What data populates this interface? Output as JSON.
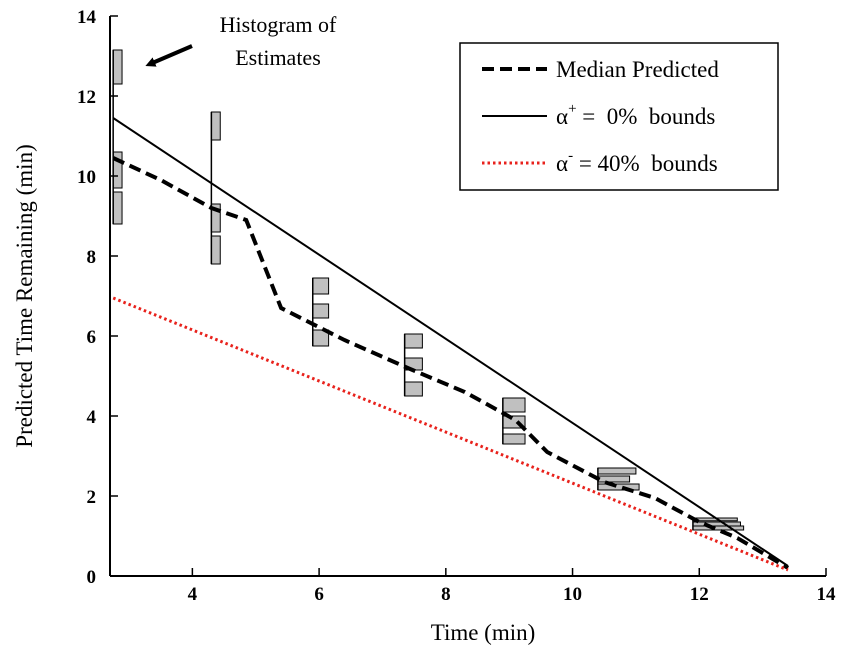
{
  "chart_data": {
    "type": "line",
    "title": "",
    "xlabel": "Time (min)",
    "ylabel": "Predicted Time Remaining (min)",
    "xlim": [
      2.7,
      14
    ],
    "ylim": [
      0,
      14
    ],
    "xticks": [
      4,
      6,
      8,
      10,
      12,
      14
    ],
    "yticks": [
      0,
      2,
      4,
      6,
      8,
      10,
      12,
      14
    ],
    "xtick_labels": [
      "4",
      "6",
      "8",
      "10",
      "12",
      "14"
    ],
    "ytick_labels": [
      "0",
      "2",
      "4",
      "6",
      "8",
      "10",
      "12",
      "14"
    ],
    "grid": false,
    "legend_position": "top-right",
    "annotation": {
      "lines": [
        "Histogram of",
        "Estimates"
      ],
      "arrow": true
    },
    "series": [
      {
        "name": "Median Predicted",
        "style": "dashed",
        "color": "#000000",
        "x": [
          2.75,
          3.5,
          4.3,
          4.85,
          5.4,
          6.4,
          7.4,
          8.3,
          9.1,
          9.6,
          10.5,
          11.3,
          12.0,
          12.6,
          13.4
        ],
        "y": [
          10.45,
          9.9,
          9.2,
          8.9,
          6.7,
          5.9,
          5.2,
          4.6,
          3.9,
          3.1,
          2.35,
          1.95,
          1.35,
          0.95,
          0.2
        ]
      },
      {
        "name_parts": {
          "symbol": "α",
          "sup": "+",
          "rest": " =  0%  bounds"
        },
        "style": "solid",
        "color": "#000000",
        "x": [
          2.75,
          13.4
        ],
        "y": [
          11.45,
          0.25
        ]
      },
      {
        "name_parts": {
          "symbol": "α",
          "sup": "-",
          "rest": " = 40%  bounds"
        },
        "style": "dotted",
        "color": "#e8221c",
        "x": [
          2.75,
          13.4
        ],
        "y": [
          6.95,
          0.15
        ]
      }
    ],
    "histograms": [
      {
        "x": 2.75,
        "bins": [
          [
            8.8,
            9.6,
            0.14
          ],
          [
            9.7,
            10.6,
            0.14
          ],
          [
            12.3,
            13.15,
            0.14
          ]
        ],
        "gaps": [
          [
            9.6,
            9.7
          ],
          [
            10.6,
            12.3
          ]
        ]
      },
      {
        "x": 4.3,
        "bins": [
          [
            7.8,
            8.5,
            0.14
          ],
          [
            8.6,
            9.3,
            0.14
          ],
          [
            10.9,
            11.6,
            0.14
          ]
        ],
        "gaps": [
          [
            9.3,
            10.9
          ]
        ]
      },
      {
        "x": 5.9,
        "bins": [
          [
            5.75,
            6.15,
            0.25
          ],
          [
            6.45,
            6.8,
            0.25
          ],
          [
            7.05,
            7.45,
            0.25
          ]
        ]
      },
      {
        "x": 7.35,
        "bins": [
          [
            4.5,
            4.85,
            0.28
          ],
          [
            5.15,
            5.45,
            0.28
          ],
          [
            5.7,
            6.05,
            0.28
          ]
        ]
      },
      {
        "x": 8.9,
        "bins": [
          [
            3.3,
            3.55,
            0.35
          ],
          [
            3.7,
            4.0,
            0.35
          ],
          [
            4.1,
            4.45,
            0.35
          ]
        ]
      },
      {
        "x": 10.4,
        "bins": [
          [
            2.15,
            2.3,
            0.65
          ],
          [
            2.35,
            2.5,
            0.5
          ],
          [
            2.55,
            2.7,
            0.6
          ]
        ]
      },
      {
        "x": 11.9,
        "bins": [
          [
            1.15,
            1.25,
            0.8
          ],
          [
            1.25,
            1.35,
            0.75
          ],
          [
            1.38,
            1.45,
            0.7
          ]
        ]
      }
    ]
  }
}
